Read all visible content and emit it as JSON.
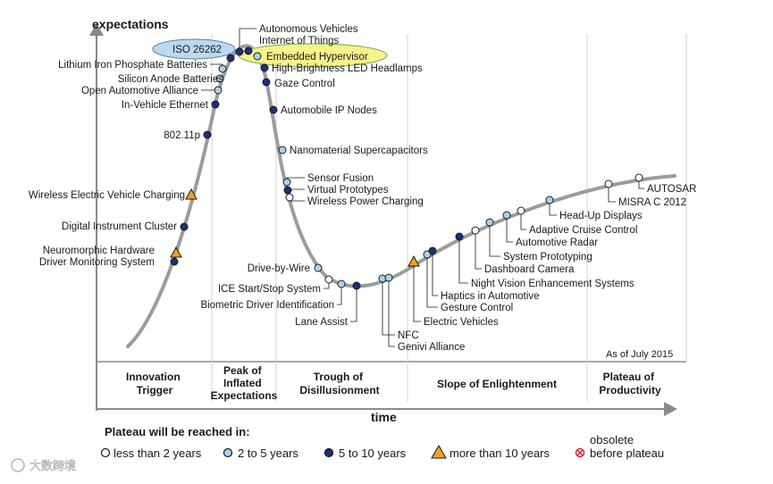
{
  "colors": {
    "curve": "#9c9c9c",
    "plateau_lt2": "#ffffff",
    "plateau_2to5": "#a8d2f2",
    "plateau_5to10": "#1b2f7a",
    "plateau_gt10": "#f4a020",
    "obsolete": "#d9202a",
    "iso_highlight": "#bcd9ef",
    "hypervisor_highlight": "#f7f38a"
  },
  "chart_data": {
    "type": "scatter",
    "ylabel": "expectations",
    "xlabel": "time",
    "as_of": "As of July 2015",
    "phases": [
      "Innovation Trigger",
      "Peak of Inflated Expectations",
      "Trough of Disillusionment",
      "Slope of Enlightenment",
      "Plateau of Productivity"
    ],
    "legend": {
      "title": "Plateau will be reached in:",
      "items": [
        {
          "key": "lt2",
          "label": "less than 2 years"
        },
        {
          "key": "2to5",
          "label": "2 to 5 years"
        },
        {
          "key": "5to10",
          "label": "5 to 10 years"
        },
        {
          "key": "gt10",
          "label": "more than 10 years"
        },
        {
          "key": "obsolete",
          "label_top": "obsolete",
          "label": "before plateau"
        }
      ]
    },
    "technologies": [
      {
        "name": "Driver Monitoring System",
        "plateau": "5to10"
      },
      {
        "name": "Neuromorphic Hardware",
        "plateau": "gt10"
      },
      {
        "name": "Digital Instrument Cluster",
        "plateau": "5to10"
      },
      {
        "name": "Wireless Electric Vehicle Charging",
        "plateau": "gt10"
      },
      {
        "name": "802.11p",
        "plateau": "5to10"
      },
      {
        "name": "In-Vehicle Ethernet",
        "plateau": "5to10"
      },
      {
        "name": "Open Automotive Alliance",
        "plateau": "2to5"
      },
      {
        "name": "Silicon Anode Batteries",
        "plateau": "2to5"
      },
      {
        "name": "Lithium Iron Phosphate Batteries",
        "plateau": "2to5"
      },
      {
        "name": "ISO 26262",
        "plateau": "5to10",
        "highlight": "iso"
      },
      {
        "name": "Autonomous Vehicles",
        "plateau": "5to10"
      },
      {
        "name": "Internet of Things",
        "plateau": "5to10"
      },
      {
        "name": "Embedded Hypervisor",
        "plateau": "2to5",
        "highlight": "hypervisor"
      },
      {
        "name": "High-Brightness LED Headlamps",
        "plateau": "5to10"
      },
      {
        "name": "Gaze Control",
        "plateau": "5to10"
      },
      {
        "name": "Automobile IP Nodes",
        "plateau": "5to10"
      },
      {
        "name": "Nanomaterial Supercapacitors",
        "plateau": "2to5"
      },
      {
        "name": "Sensor Fusion",
        "plateau": "2to5"
      },
      {
        "name": "Virtual Prototypes",
        "plateau": "5to10"
      },
      {
        "name": "Wireless Power Charging",
        "plateau": "lt2"
      },
      {
        "name": "Drive-by-Wire",
        "plateau": "2to5"
      },
      {
        "name": "ICE Start/Stop System",
        "plateau": "lt2"
      },
      {
        "name": "Biometric Driver Identification",
        "plateau": "2to5"
      },
      {
        "name": "Lane Assist",
        "plateau": "5to10"
      },
      {
        "name": "NFC",
        "plateau": "2to5"
      },
      {
        "name": "Genivi Alliance",
        "plateau": "2to5"
      },
      {
        "name": "Electric Vehicles",
        "plateau": "gt10"
      },
      {
        "name": "Gesture Control",
        "plateau": "2to5"
      },
      {
        "name": "Haptics in Automotive",
        "plateau": "5to10"
      },
      {
        "name": "Night Vision Enhancement Systems",
        "plateau": "5to10"
      },
      {
        "name": "Dashboard Camera",
        "plateau": "lt2"
      },
      {
        "name": "System Prototyping",
        "plateau": "2to5"
      },
      {
        "name": "Automotive Radar",
        "plateau": "2to5"
      },
      {
        "name": "Adaptive Cruise Control",
        "plateau": "lt2"
      },
      {
        "name": "Head-Up Displays",
        "plateau": "2to5"
      },
      {
        "name": "MISRA C 2012",
        "plateau": "lt2"
      },
      {
        "name": "AUTOSAR",
        "plateau": "lt2"
      }
    ]
  },
  "watermark": "大数跨境"
}
